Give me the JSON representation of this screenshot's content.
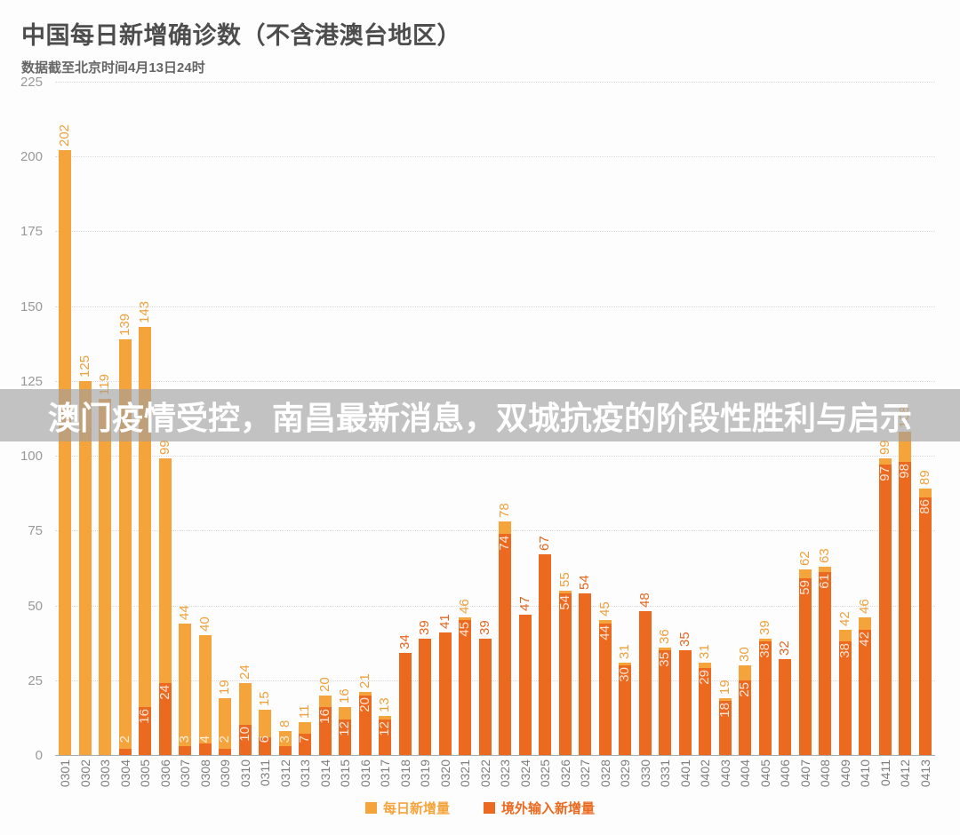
{
  "header": {
    "title": "中国每日新增确诊数（不含港澳台地区）",
    "subtitle": "数据截至北京时间4月13日24时"
  },
  "overlay": {
    "text": "澳门疫情受控，南昌最新消息，双城抗疫的阶段性胜利与启示"
  },
  "legend": {
    "items": [
      {
        "label": "每日新增量",
        "color": "#f5a43c"
      },
      {
        "label": "境外输入新增量",
        "color": "#eb6a1f"
      }
    ]
  },
  "colors": {
    "daily_bar": "#f5a43c",
    "imported_bar": "#eb6a1f",
    "daily_label": "#f0a03a",
    "equal_label": "#e4671f",
    "imported_label": "rgba(255,255,255,0.82)"
  },
  "chart_data": {
    "type": "bar",
    "title": "中国每日新增确诊数（不含港澳台地区）",
    "subtitle": "数据截至北京时间4月13日24时",
    "xlabel": "",
    "ylabel": "",
    "ylim": [
      0,
      225
    ],
    "yticks": [
      0,
      25,
      50,
      75,
      100,
      125,
      150,
      175,
      200,
      225
    ],
    "grid": true,
    "legend_position": "bottom",
    "categories": [
      "0301",
      "0302",
      "0303",
      "0304",
      "0305",
      "0306",
      "0307",
      "0308",
      "0309",
      "0310",
      "0311",
      "0312",
      "0313",
      "0314",
      "0315",
      "0316",
      "0317",
      "0318",
      "0319",
      "0320",
      "0321",
      "0322",
      "0323",
      "0324",
      "0325",
      "0326",
      "0327",
      "0328",
      "0329",
      "0330",
      "0331",
      "0401",
      "0402",
      "0403",
      "0404",
      "0405",
      "0406",
      "0407",
      "0408",
      "0409",
      "0410",
      "0411",
      "0412",
      "0413"
    ],
    "series": [
      {
        "name": "每日新增量",
        "values": [
          202,
          125,
          119,
          139,
          143,
          99,
          44,
          40,
          19,
          24,
          15,
          8,
          11,
          20,
          16,
          21,
          13,
          34,
          39,
          41,
          46,
          39,
          78,
          47,
          67,
          55,
          54,
          45,
          31,
          48,
          36,
          35,
          31,
          19,
          30,
          39,
          32,
          62,
          63,
          42,
          46,
          99,
          108,
          89
        ]
      },
      {
        "name": "境外输入新增量",
        "values": [
          null,
          null,
          null,
          2,
          16,
          24,
          3,
          4,
          2,
          10,
          6,
          3,
          7,
          16,
          12,
          20,
          12,
          34,
          39,
          41,
          45,
          39,
          74,
          47,
          67,
          54,
          54,
          44,
          30,
          48,
          35,
          35,
          29,
          18,
          25,
          38,
          32,
          59,
          61,
          38,
          42,
          97,
          98,
          86
        ]
      }
    ]
  }
}
